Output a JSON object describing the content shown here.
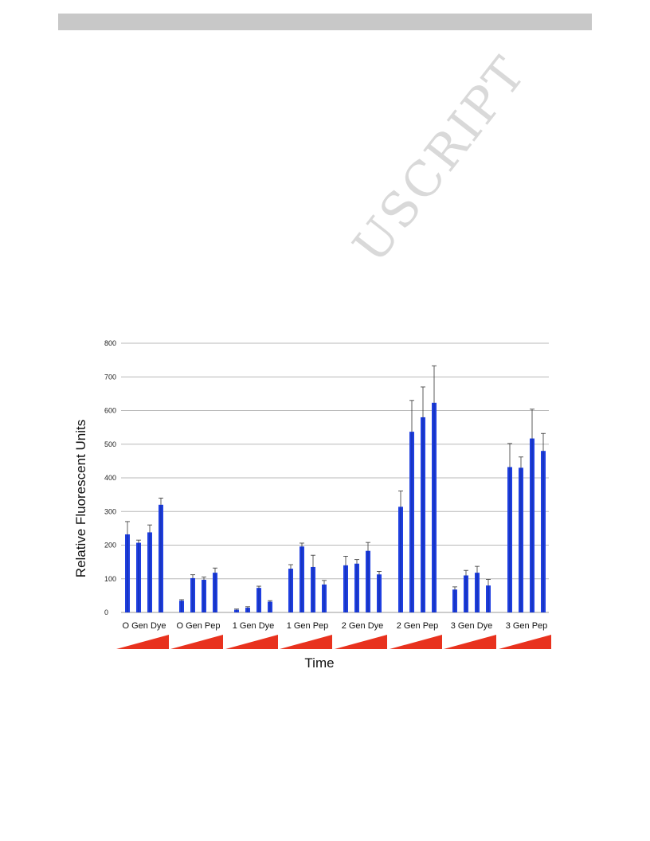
{
  "watermark": "USCRIPT",
  "chart_data": {
    "type": "bar",
    "xlabel": "Time",
    "ylabel": "Relative Fluorescent Units",
    "ylim": [
      0,
      800
    ],
    "yticks": [
      0,
      100,
      200,
      300,
      400,
      500,
      600,
      700,
      800
    ],
    "grid": true,
    "categories": [
      "O Gen Dye",
      "O Gen Pep",
      "1 Gen Dye",
      "1 Gen Pep",
      "2 Gen Dye",
      "2 Gen Pep",
      "3 Gen Dye",
      "3 Gen Pep"
    ],
    "groups": [
      {
        "values": [
          232,
          207,
          238,
          320
        ],
        "errors": [
          38,
          8,
          22,
          20
        ]
      },
      {
        "values": [
          35,
          102,
          97,
          118
        ],
        "errors": [
          3,
          10,
          8,
          14
        ]
      },
      {
        "values": [
          8,
          14,
          73,
          32
        ],
        "errors": [
          2,
          3,
          5,
          3
        ]
      },
      {
        "values": [
          130,
          196,
          135,
          83
        ],
        "errors": [
          12,
          10,
          35,
          12
        ]
      },
      {
        "values": [
          140,
          145,
          183,
          113
        ],
        "errors": [
          27,
          12,
          25,
          9
        ]
      },
      {
        "values": [
          314,
          537,
          580,
          623
        ],
        "errors": [
          47,
          93,
          90,
          110
        ]
      },
      {
        "values": [
          68,
          110,
          118,
          80
        ],
        "errors": [
          8,
          15,
          19,
          18
        ]
      },
      {
        "values": [
          432,
          430,
          517,
          480
        ],
        "errors": [
          70,
          32,
          87,
          52
        ]
      }
    ],
    "bar_color": "#1f3fe0",
    "ramp_color": "#e8321e"
  }
}
